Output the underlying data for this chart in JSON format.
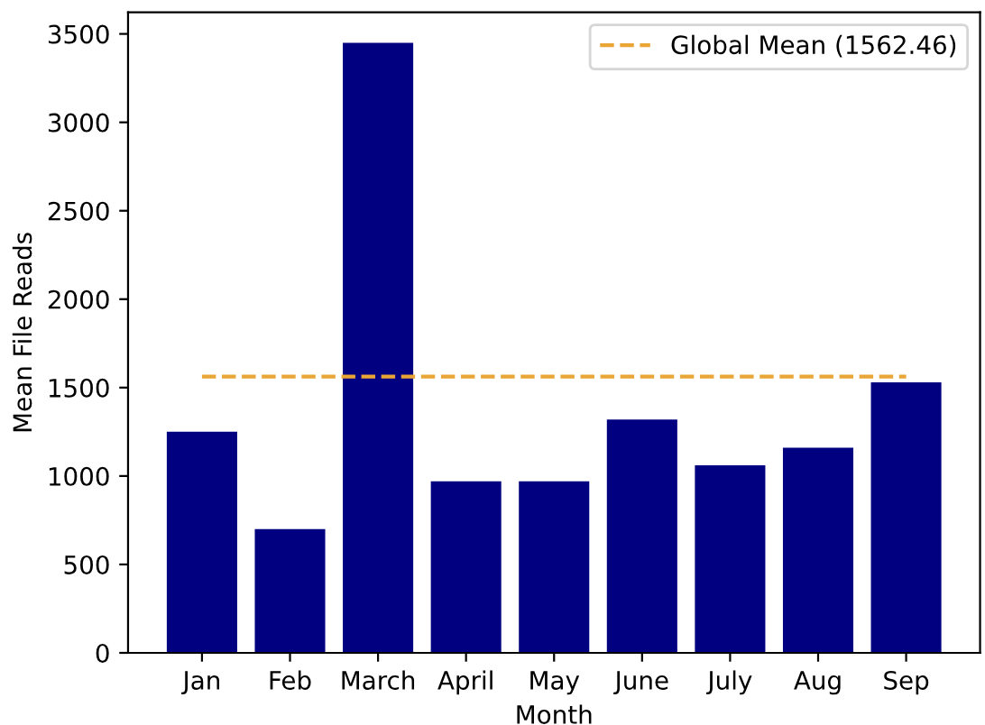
{
  "chart_data": {
    "type": "bar",
    "xlabel": "Month",
    "ylabel": "Mean File Reads",
    "categories": [
      "Jan",
      "Feb",
      "March",
      "April",
      "May",
      "June",
      "July",
      "Aug",
      "Sep"
    ],
    "values": [
      1250,
      700,
      3450,
      970,
      970,
      1320,
      1060,
      1160,
      1530
    ],
    "color": "#000080",
    "ylim": [
      0,
      3622
    ],
    "yticks": [
      0,
      500,
      1000,
      1500,
      2000,
      2500,
      3000,
      3500
    ],
    "ref_lines": [
      {
        "axis": "y",
        "value": 1562.46,
        "label": "Global Mean (1562.46)",
        "color": "#e9a535",
        "line_style": "dashed"
      }
    ],
    "legend": "top right"
  }
}
